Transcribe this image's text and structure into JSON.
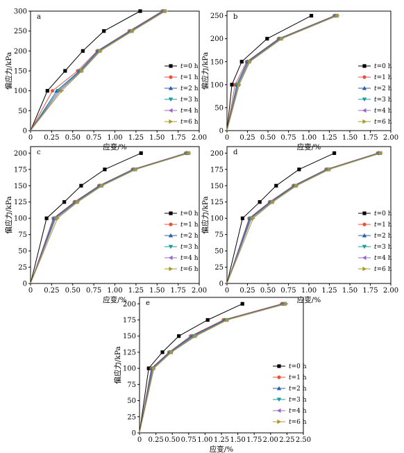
{
  "colors": {
    "t0": "#000000",
    "t1": "#e8523a",
    "t2": "#2b5ea8",
    "t3": "#1a9a9a",
    "t4": "#9b6ac7",
    "t6": "#a89a2a"
  },
  "chart_data": [
    {
      "type": "line",
      "panel_label": "a",
      "xlabel": "应变/%",
      "ylabel": "偏应力/kPa",
      "xlim": [
        0,
        2.0
      ],
      "ylim": [
        0,
        300
      ],
      "xticks": [
        "0",
        "0.25",
        "0.50",
        "0.75",
        "1.00",
        "1.25",
        "1.50",
        "1.75",
        "2.00"
      ],
      "yticks": [
        "0",
        "50",
        "100",
        "150",
        "200",
        "250",
        "300"
      ],
      "legend_position": "right",
      "series": [
        {
          "name": "t=0 h",
          "x": [
            0,
            0.2,
            0.41,
            0.62,
            0.87,
            1.3
          ],
          "y": [
            0,
            100,
            150,
            200,
            250,
            300
          ]
        },
        {
          "name": "t=1 h",
          "x": [
            0,
            0.26,
            0.56,
            0.79,
            1.17,
            1.56
          ],
          "y": [
            0,
            100,
            150,
            200,
            250,
            300
          ]
        },
        {
          "name": "t=2 h",
          "x": [
            0,
            0.31,
            0.58,
            0.8,
            1.18,
            1.57
          ],
          "y": [
            0,
            100,
            150,
            200,
            250,
            300
          ]
        },
        {
          "name": "t=3 h",
          "x": [
            0,
            0.33,
            0.59,
            0.81,
            1.19,
            1.58
          ],
          "y": [
            0,
            100,
            150,
            200,
            250,
            300
          ]
        },
        {
          "name": "t=4 h",
          "x": [
            0,
            0.35,
            0.6,
            0.82,
            1.2,
            1.59
          ],
          "y": [
            0,
            100,
            150,
            200,
            250,
            300
          ]
        },
        {
          "name": "t=6 h",
          "x": [
            0,
            0.37,
            0.61,
            0.83,
            1.21,
            1.6
          ],
          "y": [
            0,
            100,
            150,
            200,
            250,
            300
          ]
        }
      ]
    },
    {
      "type": "line",
      "panel_label": "b",
      "xlabel": "应变/%",
      "ylabel": "偏应力/kPa",
      "xlim": [
        0,
        2.0
      ],
      "ylim": [
        0,
        260
      ],
      "xticks": [
        "0",
        "0.25",
        "0.50",
        "0.75",
        "1.00",
        "1.25",
        "1.50",
        "1.75",
        "2.00"
      ],
      "yticks": [
        "0",
        "50",
        "100",
        "150",
        "200",
        "250"
      ],
      "legend_position": "right",
      "series": [
        {
          "name": "t=0 h",
          "x": [
            0,
            0.06,
            0.18,
            0.49,
            1.03
          ],
          "y": [
            0,
            100,
            150,
            200,
            250
          ]
        },
        {
          "name": "t=1 h",
          "x": [
            0,
            0.1,
            0.24,
            0.63,
            1.31
          ],
          "y": [
            0,
            100,
            150,
            200,
            250
          ]
        },
        {
          "name": "t=2 h",
          "x": [
            0,
            0.12,
            0.25,
            0.64,
            1.32
          ],
          "y": [
            0,
            100,
            150,
            200,
            250
          ]
        },
        {
          "name": "t=3 h",
          "x": [
            0,
            0.13,
            0.26,
            0.65,
            1.33
          ],
          "y": [
            0,
            100,
            150,
            200,
            250
          ]
        },
        {
          "name": "t=4 h",
          "x": [
            0,
            0.14,
            0.27,
            0.66,
            1.34
          ],
          "y": [
            0,
            100,
            150,
            200,
            250
          ]
        },
        {
          "name": "t=6 h",
          "x": [
            0,
            0.15,
            0.28,
            0.67,
            1.35
          ],
          "y": [
            0,
            100,
            150,
            200,
            250
          ]
        }
      ]
    },
    {
      "type": "line",
      "panel_label": "c",
      "xlabel": "应变/%",
      "ylabel": "偏应力/kPa",
      "xlim": [
        0,
        2.0
      ],
      "ylim": [
        0,
        210
      ],
      "xticks": [
        "0",
        "0.25",
        "0.50",
        "0.75",
        "1.00",
        "1.25",
        "1.50",
        "1.75",
        "2.00"
      ],
      "yticks": [
        "0",
        "25",
        "50",
        "75",
        "100",
        "125",
        "150",
        "175",
        "200"
      ],
      "legend_position": "right",
      "series": [
        {
          "name": "t=0 h",
          "x": [
            0,
            0.19,
            0.4,
            0.6,
            0.88,
            1.31
          ],
          "y": [
            0,
            100,
            125,
            150,
            175,
            200
          ]
        },
        {
          "name": "t=1 h",
          "x": [
            0,
            0.27,
            0.52,
            0.81,
            1.21,
            1.84
          ],
          "y": [
            0,
            100,
            125,
            150,
            175,
            200
          ]
        },
        {
          "name": "t=2 h",
          "x": [
            0,
            0.28,
            0.53,
            0.82,
            1.22,
            1.85
          ],
          "y": [
            0,
            100,
            125,
            150,
            175,
            200
          ]
        },
        {
          "name": "t=3 h",
          "x": [
            0,
            0.29,
            0.54,
            0.83,
            1.23,
            1.86
          ],
          "y": [
            0,
            100,
            125,
            150,
            175,
            200
          ]
        },
        {
          "name": "t=4 h",
          "x": [
            0,
            0.3,
            0.55,
            0.84,
            1.24,
            1.87
          ],
          "y": [
            0,
            100,
            125,
            150,
            175,
            200
          ]
        },
        {
          "name": "t=6 h",
          "x": [
            0,
            0.32,
            0.56,
            0.85,
            1.25,
            1.88
          ],
          "y": [
            0,
            100,
            125,
            150,
            175,
            200
          ]
        }
      ]
    },
    {
      "type": "line",
      "panel_label": "d",
      "xlabel": "应变/%",
      "ylabel": "偏应力/kPa",
      "xlim": [
        0,
        2.0
      ],
      "ylim": [
        0,
        210
      ],
      "xticks": [
        "0",
        "0.25",
        "0.50",
        "0.75",
        "1.00",
        "1.25",
        "1.50",
        "1.75",
        "2.00"
      ],
      "yticks": [
        "0",
        "25",
        "50",
        "75",
        "100",
        "125",
        "150",
        "175",
        "200"
      ],
      "legend_position": "right",
      "series": [
        {
          "name": "t=0 h",
          "x": [
            0,
            0.19,
            0.4,
            0.6,
            0.88,
            1.31
          ],
          "y": [
            0,
            100,
            125,
            150,
            175,
            200
          ]
        },
        {
          "name": "t=1 h",
          "x": [
            0,
            0.27,
            0.52,
            0.81,
            1.21,
            1.84
          ],
          "y": [
            0,
            100,
            125,
            150,
            175,
            200
          ]
        },
        {
          "name": "t=2 h",
          "x": [
            0,
            0.28,
            0.53,
            0.82,
            1.22,
            1.85
          ],
          "y": [
            0,
            100,
            125,
            150,
            175,
            200
          ]
        },
        {
          "name": "t=3 h",
          "x": [
            0,
            0.29,
            0.54,
            0.83,
            1.23,
            1.86
          ],
          "y": [
            0,
            100,
            125,
            150,
            175,
            200
          ]
        },
        {
          "name": "t=4 h",
          "x": [
            0,
            0.3,
            0.55,
            0.84,
            1.24,
            1.87
          ],
          "y": [
            0,
            100,
            125,
            150,
            175,
            200
          ]
        },
        {
          "name": "t=6 h",
          "x": [
            0,
            0.32,
            0.56,
            0.85,
            1.25,
            1.88
          ],
          "y": [
            0,
            100,
            125,
            150,
            175,
            200
          ]
        }
      ]
    },
    {
      "type": "line",
      "panel_label": "e",
      "xlabel": "应变/%",
      "ylabel": "偏应力/kPa",
      "xlim": [
        0,
        2.5
      ],
      "ylim": [
        0,
        210
      ],
      "xticks": [
        "0",
        "0.25",
        "0.50",
        "0.75",
        "1.00",
        "1.25",
        "1.50",
        "1.75",
        "2.00",
        "2.25",
        "2.50"
      ],
      "yticks": [
        "0",
        "25",
        "50",
        "75",
        "100",
        "125",
        "150",
        "175",
        "200"
      ],
      "legend_position": "right",
      "series": [
        {
          "name": "t=0 h",
          "x": [
            0,
            0.14,
            0.35,
            0.6,
            1.04,
            1.57
          ],
          "y": [
            0,
            100,
            125,
            150,
            175,
            200
          ]
        },
        {
          "name": "t=1 h",
          "x": [
            0,
            0.18,
            0.45,
            0.78,
            1.28,
            2.17
          ],
          "y": [
            0,
            100,
            125,
            150,
            175,
            200
          ]
        },
        {
          "name": "t=2 h",
          "x": [
            0,
            0.19,
            0.46,
            0.8,
            1.3,
            2.19
          ],
          "y": [
            0,
            100,
            125,
            150,
            175,
            200
          ]
        },
        {
          "name": "t=3 h",
          "x": [
            0,
            0.2,
            0.47,
            0.82,
            1.32,
            2.21
          ],
          "y": [
            0,
            100,
            125,
            150,
            175,
            200
          ]
        },
        {
          "name": "t=4 h",
          "x": [
            0,
            0.21,
            0.48,
            0.84,
            1.33,
            2.22
          ],
          "y": [
            0,
            100,
            125,
            150,
            175,
            200
          ]
        },
        {
          "name": "t=6 h",
          "x": [
            0,
            0.22,
            0.49,
            0.86,
            1.34,
            2.24
          ],
          "y": [
            0,
            100,
            125,
            150,
            175,
            200
          ]
        }
      ]
    }
  ]
}
